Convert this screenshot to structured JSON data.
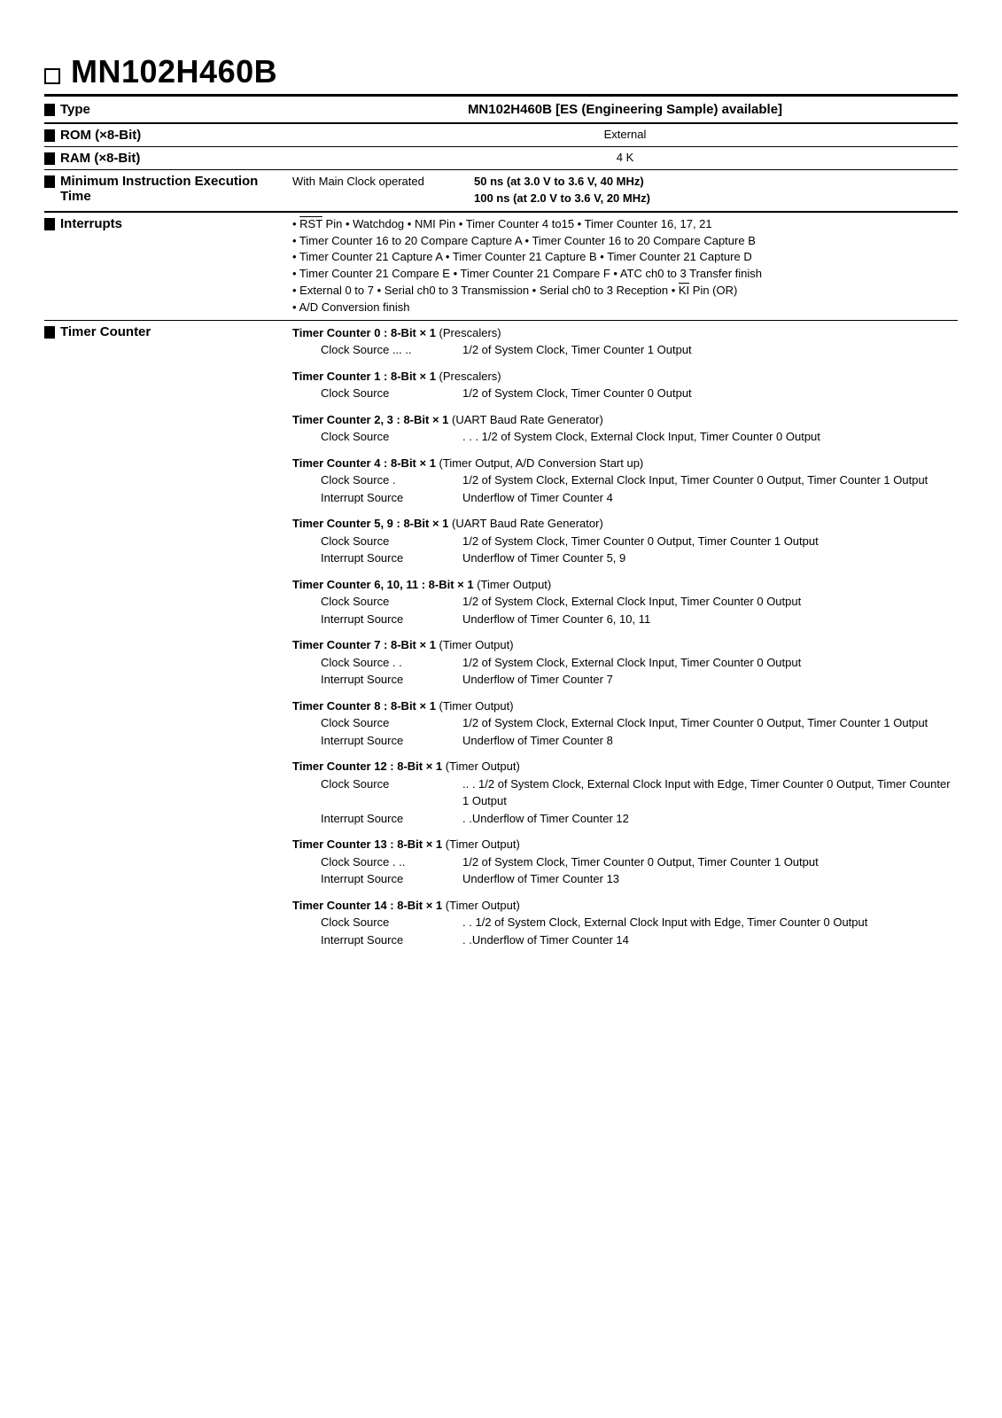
{
  "part_number": "MN102H460B",
  "type_row": {
    "label": "Type",
    "value": "MN102H460B [ES (Engineering Sample) available]"
  },
  "rom_row": {
    "label": "ROM (×8-Bit)",
    "value": "External"
  },
  "ram_row": {
    "label": "RAM (×8-Bit)",
    "value": "4 K"
  },
  "miet": {
    "label": "Minimum Instruction Execution Time",
    "col1": "With Main Clock operated",
    "line1": "50 ns   (at 3.0 V to 3.6 V, 40 MHz)",
    "line2": "100 ns (at 2.0 V to 3.6 V, 20 MHz)"
  },
  "interrupts": {
    "label": "Interrupts",
    "line1_pre": "• ",
    "line1_rst": "RST",
    "line1_post": " Pin   • Watchdog   • NMI Pin • Timer Counter 4 to15   • Timer Counter 16, 17, 21",
    "line2": "• Timer Counter 16 to 20 Compare Capture A   • Timer Counter 16 to 20 Compare Capture B",
    "line3": "• Timer Counter 21 Capture A  • Timer Counter 21 Capture B  • Timer Counter 21 Capture D",
    "line4": "• Timer Counter 21 Compare E  • Timer Counter 21 Compare F  • ATC ch0 to 3 Transfer finish",
    "line5_pre": "• External 0 to 7  • Serial ch0 to 3 Transmission   • Serial ch0 to 3 Reception   • ",
    "line5_ki": "KI",
    "line5_post": " Pin (OR)",
    "line6": "• A/D Conversion finish"
  },
  "timer_counter": {
    "label": "Timer Counter",
    "sections": [
      {
        "header_bold": "Timer Counter 0 : 8-Bit × 1",
        "header_rest": " (Prescalers)",
        "details": [
          {
            "label": "Clock Source  ... ..",
            "value": "1/2 of System Clock, Timer Counter 1 Output"
          }
        ]
      },
      {
        "header_bold": "Timer Counter 1 : 8-Bit × 1",
        "header_rest": " (Prescalers)",
        "details": [
          {
            "label": "Clock Source",
            "value": "1/2 of System Clock, Timer Counter 0 Output"
          }
        ]
      },
      {
        "header_bold": "Timer Counter 2, 3 : 8-Bit × 1",
        "header_rest": " (UART Baud Rate Generator)",
        "details": [
          {
            "label": "Clock Source",
            "value": ". . . 1/2 of System Clock, External Clock Input, Timer Counter 0 Output"
          }
        ]
      },
      {
        "header_bold": "Timer Counter 4 : 8-Bit × 1",
        "header_rest": " (Timer Output, A/D Conversion Start up)",
        "details": [
          {
            "label": "Clock Source       .",
            "value": "1/2 of System Clock, External Clock Input, Timer Counter 0 Output, Timer Counter 1 Output"
          },
          {
            "label": "Interrupt Source",
            "value": "Underflow of Timer Counter 4"
          }
        ]
      },
      {
        "header_bold": "Timer Counter 5, 9 : 8-Bit × 1",
        "header_rest": " (UART Baud Rate Generator)",
        "details": [
          {
            "label": "Clock Source",
            "value": "1/2 of System Clock, Timer Counter 0 Output, Timer Counter 1 Output"
          },
          {
            "label": "Interrupt Source",
            "value": "Underflow of Timer Counter 5, 9"
          }
        ]
      },
      {
        "header_bold": "Timer Counter 6, 10, 11 : 8-Bit × 1",
        "header_rest": " (Timer Output)",
        "details": [
          {
            "label": "Clock Source",
            "value": "1/2 of System Clock, External Clock Input, Timer Counter 0 Output"
          },
          {
            "label": "Interrupt Source",
            "value": "Underflow of Timer Counter 6, 10, 11"
          }
        ]
      },
      {
        "header_bold": "Timer Counter 7 : 8-Bit × 1",
        "header_rest": " (Timer Output)",
        "details": [
          {
            "label": "Clock Source        . .",
            "value": "1/2 of System Clock, External Clock Input, Timer Counter 0 Output"
          },
          {
            "label": "Interrupt Source",
            "value": "Underflow of Timer Counter 7"
          }
        ]
      },
      {
        "header_bold": "Timer Counter 8 : 8-Bit × 1",
        "header_rest": " (Timer Output)",
        "details": [
          {
            "label": "Clock Source",
            "value": "1/2 of System Clock, External Clock Input, Timer Counter 0 Output, Timer Counter 1 Output"
          },
          {
            "label": "Interrupt Source",
            "value": "Underflow of Timer Counter 8"
          }
        ]
      },
      {
        "header_bold": "Timer Counter 12 : 8-Bit × 1",
        "header_rest": " (Timer Output)",
        "details": [
          {
            "label": "Clock Source",
            "value": "..  .   1/2 of System Clock, External Clock Input with Edge, Timer Counter 0 Output, Timer Counter 1 Output"
          },
          {
            "label": "Interrupt Source",
            "value": ". .Underflow of Timer Counter 12"
          }
        ]
      },
      {
        "header_bold": "Timer Counter 13 : 8-Bit × 1",
        "header_rest": " (Timer Output)",
        "details": [
          {
            "label": "Clock Source  . ..",
            "value": "1/2 of System Clock, Timer Counter 0 Output, Timer Counter 1 Output"
          },
          {
            "label": "Interrupt Source",
            "value": "Underflow of Timer Counter 13"
          }
        ]
      },
      {
        "header_bold": "Timer Counter 14 : 8-Bit × 1",
        "header_rest": " (Timer Output)",
        "details": [
          {
            "label": "Clock Source",
            "value": ". .  1/2 of System Clock, External Clock Input with Edge, Timer Counter 0 Output"
          },
          {
            "label": "Interrupt Source",
            "value": ".  .Underflow of Timer Counter 14"
          }
        ]
      }
    ]
  }
}
